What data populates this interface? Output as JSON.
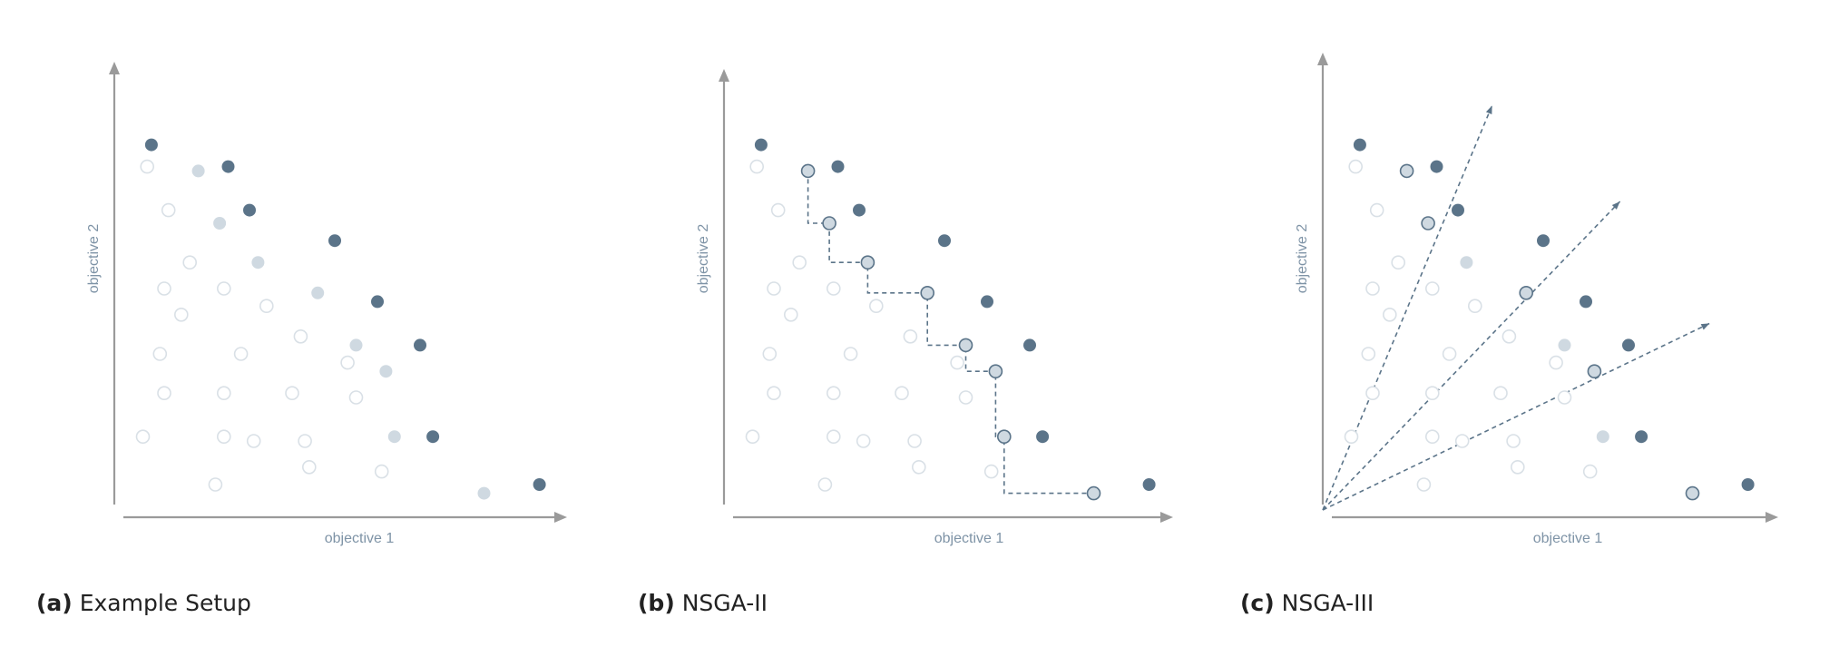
{
  "colors": {
    "axis": "#9a9a9a",
    "label": "#7e93a6",
    "dark": "#5b7489",
    "light": "#cfd9e1",
    "open": "#d9e0e6"
  },
  "chart_data": [
    {
      "type": "scatter",
      "caption_tag": "(a)",
      "caption_text": "Example Setup",
      "xlabel": "objective 1",
      "ylabel": "objective 2",
      "xlim": [
        0,
        10
      ],
      "ylim": [
        0,
        10
      ],
      "points_dark": [
        [
          0.7,
          8.3
        ],
        [
          2.5,
          7.8
        ],
        [
          3.0,
          6.8
        ],
        [
          5.0,
          6.1
        ],
        [
          6.0,
          4.7
        ],
        [
          7.0,
          3.7
        ],
        [
          7.3,
          1.6
        ],
        [
          9.8,
          0.5
        ]
      ],
      "points_light": [
        [
          1.8,
          7.7
        ],
        [
          2.3,
          6.5
        ],
        [
          3.2,
          5.6
        ],
        [
          4.6,
          4.9
        ],
        [
          5.5,
          3.7
        ],
        [
          6.2,
          3.1
        ],
        [
          6.4,
          1.6
        ],
        [
          8.5,
          0.3
        ]
      ],
      "points_open": [
        [
          0.6,
          7.8
        ],
        [
          1.1,
          6.8
        ],
        [
          1.6,
          5.6
        ],
        [
          1.0,
          5.0
        ],
        [
          1.4,
          4.4
        ],
        [
          0.9,
          3.5
        ],
        [
          1.0,
          2.6
        ],
        [
          0.5,
          1.6
        ],
        [
          2.4,
          5.0
        ],
        [
          3.4,
          4.6
        ],
        [
          2.8,
          3.5
        ],
        [
          4.2,
          3.9
        ],
        [
          2.4,
          2.6
        ],
        [
          4.0,
          2.6
        ],
        [
          5.3,
          3.3
        ],
        [
          5.5,
          2.5
        ],
        [
          2.4,
          1.6
        ],
        [
          3.1,
          1.5
        ],
        [
          4.3,
          1.5
        ],
        [
          4.4,
          0.9
        ],
        [
          6.1,
          0.8
        ],
        [
          2.2,
          0.5
        ]
      ]
    },
    {
      "type": "scatter",
      "caption_tag": "(b)",
      "caption_text": "NSGA-II",
      "xlabel": "objective 1",
      "ylabel": "objective 2",
      "xlim": [
        0,
        10
      ],
      "ylim": [
        0,
        10
      ],
      "points_dark": [
        [
          0.7,
          8.3
        ],
        [
          2.5,
          7.8
        ],
        [
          3.0,
          6.8
        ],
        [
          5.0,
          6.1
        ],
        [
          6.0,
          4.7
        ],
        [
          7.0,
          3.7
        ],
        [
          7.3,
          1.6
        ],
        [
          9.8,
          0.5
        ]
      ],
      "points_light": [],
      "points_open": [
        [
          0.6,
          7.8
        ],
        [
          1.1,
          6.8
        ],
        [
          1.6,
          5.6
        ],
        [
          1.0,
          5.0
        ],
        [
          1.4,
          4.4
        ],
        [
          0.9,
          3.5
        ],
        [
          1.0,
          2.6
        ],
        [
          0.5,
          1.6
        ],
        [
          2.4,
          5.0
        ],
        [
          3.4,
          4.6
        ],
        [
          2.8,
          3.5
        ],
        [
          4.2,
          3.9
        ],
        [
          2.4,
          2.6
        ],
        [
          4.0,
          2.6
        ],
        [
          5.3,
          3.3
        ],
        [
          5.5,
          2.5
        ],
        [
          2.4,
          1.6
        ],
        [
          3.1,
          1.5
        ],
        [
          4.3,
          1.5
        ],
        [
          4.4,
          0.9
        ],
        [
          6.1,
          0.8
        ],
        [
          2.2,
          0.5
        ]
      ],
      "points_front": [
        [
          1.8,
          7.7
        ],
        [
          2.3,
          6.5
        ],
        [
          3.2,
          5.6
        ],
        [
          4.6,
          4.9
        ],
        [
          5.5,
          3.7
        ],
        [
          6.2,
          3.1
        ],
        [
          6.4,
          1.6
        ],
        [
          8.5,
          0.3
        ]
      ]
    },
    {
      "type": "scatter",
      "caption_tag": "(c)",
      "caption_text": "NSGA-III",
      "xlabel": "objective 1",
      "ylabel": "objective 2",
      "xlim": [
        0,
        10
      ],
      "ylim": [
        0,
        10
      ],
      "points_dark": [
        [
          0.7,
          8.3
        ],
        [
          2.5,
          7.8
        ],
        [
          3.0,
          6.8
        ],
        [
          5.0,
          6.1
        ],
        [
          6.0,
          4.7
        ],
        [
          7.0,
          3.7
        ],
        [
          7.3,
          1.6
        ],
        [
          9.8,
          0.5
        ]
      ],
      "points_light": [
        [
          3.2,
          5.6
        ],
        [
          5.5,
          3.7
        ],
        [
          6.4,
          1.6
        ]
      ],
      "points_open": [
        [
          0.6,
          7.8
        ],
        [
          1.1,
          6.8
        ],
        [
          1.6,
          5.6
        ],
        [
          1.0,
          5.0
        ],
        [
          1.4,
          4.4
        ],
        [
          0.9,
          3.5
        ],
        [
          1.0,
          2.6
        ],
        [
          0.5,
          1.6
        ],
        [
          2.4,
          5.0
        ],
        [
          3.4,
          4.6
        ],
        [
          2.8,
          3.5
        ],
        [
          4.2,
          3.9
        ],
        [
          2.4,
          2.6
        ],
        [
          4.0,
          2.6
        ],
        [
          5.3,
          3.3
        ],
        [
          5.5,
          2.5
        ],
        [
          2.4,
          1.6
        ],
        [
          3.1,
          1.5
        ],
        [
          4.3,
          1.5
        ],
        [
          4.4,
          0.9
        ],
        [
          6.1,
          0.8
        ],
        [
          2.2,
          0.5
        ]
      ],
      "points_ring": [
        [
          1.8,
          7.7
        ],
        [
          2.3,
          6.5
        ],
        [
          4.6,
          4.9
        ],
        [
          6.2,
          3.1
        ],
        [
          8.5,
          0.3
        ]
      ],
      "reference_directions": [
        [
          3.8,
          9.2
        ],
        [
          6.8,
          7.0
        ],
        [
          8.9,
          4.2
        ]
      ]
    }
  ]
}
